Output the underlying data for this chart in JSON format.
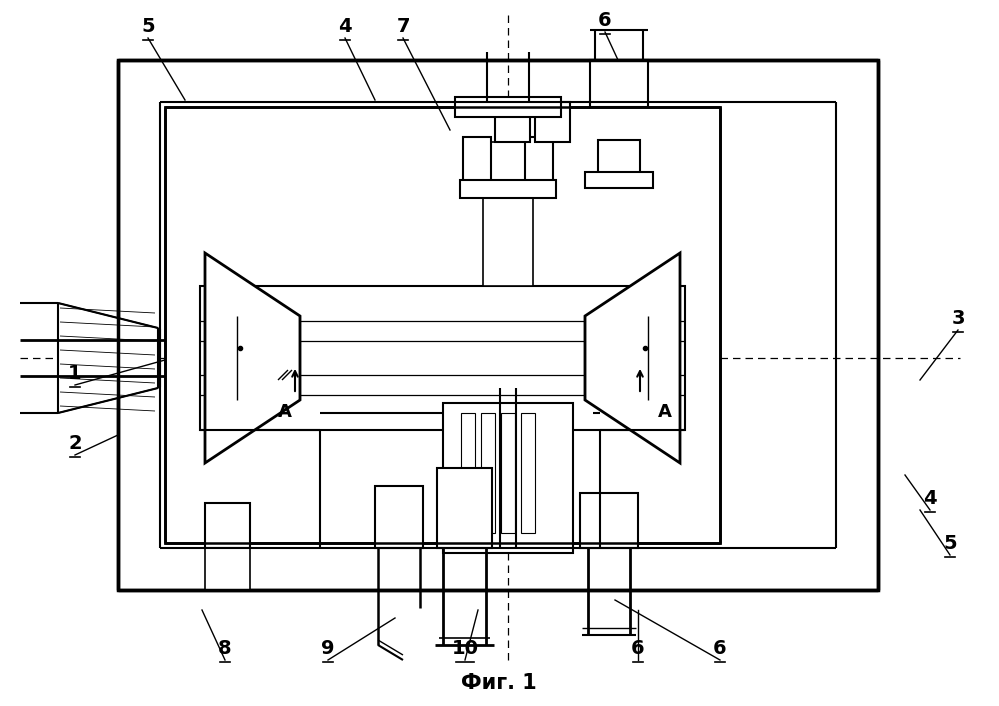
{
  "title": "Фиг. 1",
  "bg": "#ffffff",
  "lc": "#000000",
  "fig_fontsize": 15,
  "label_fontsize": 14
}
